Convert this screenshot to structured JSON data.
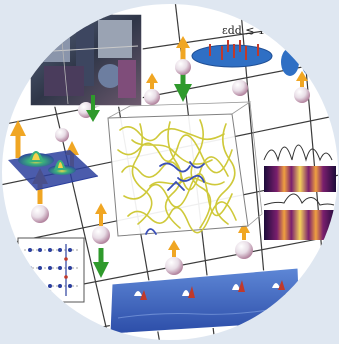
{
  "figure": {
    "equation_label": "εdd ≲ 1",
    "colors": {
      "frame_bg": "#dfe7f1",
      "circle_bg": "#ffffff",
      "grid_line": "#3b3b3b",
      "spin_green": "#2f9a2c",
      "spin_orange": "#f0a623",
      "sphere_light": "#ffffff",
      "sphere_dark": "#c58aa8",
      "tangle": "#cfc93a",
      "tangle_accent": "#3a4fb8",
      "panel_blue": "#2f4fb3",
      "heat_hot": "#f0c040",
      "disc_blue": "#2f6fc4"
    },
    "icons": [
      "apparatus-photo",
      "dipolar-disc-icon",
      "spin-arrow-icon",
      "lattice-sphere-icon",
      "density-peak-plot",
      "vortex-tangle-box",
      "density-profile-panels",
      "spin-chain-diagram",
      "surface-vortex-strip"
    ]
  }
}
